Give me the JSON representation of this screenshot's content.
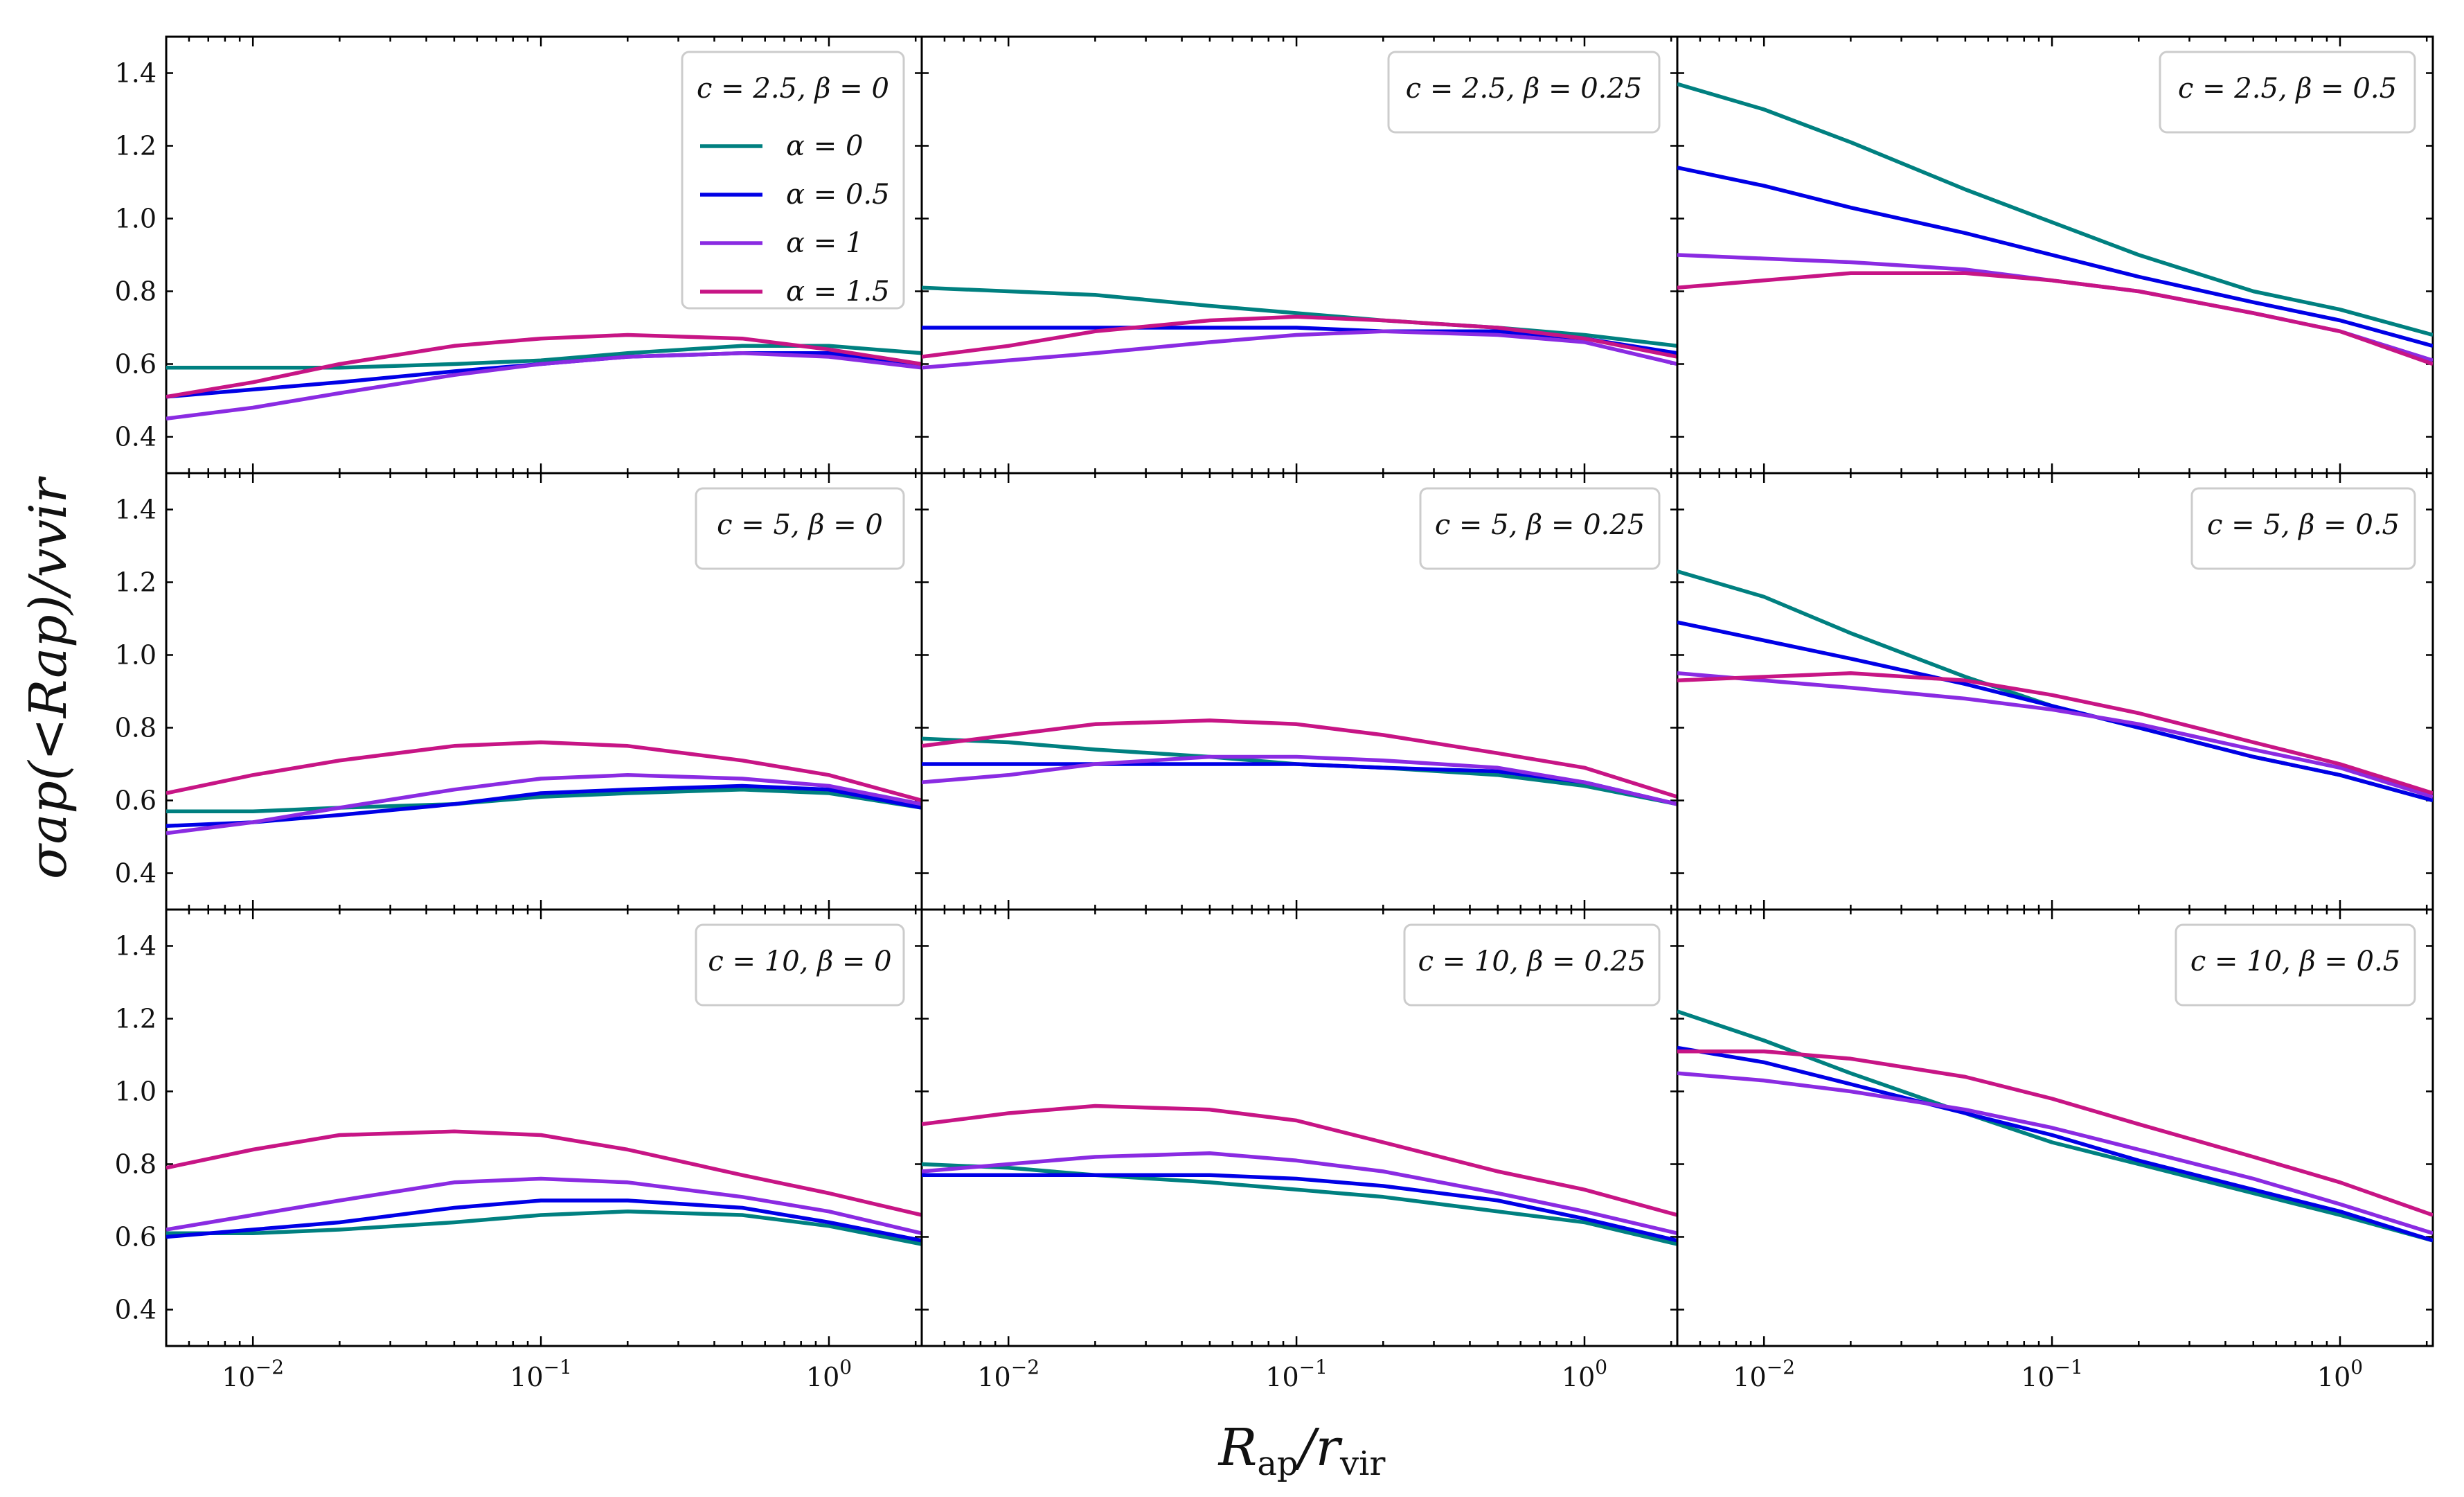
{
  "figure": {
    "xlabel_main": "R",
    "xlabel_sub": "ap",
    "xlabel_sep": "/",
    "xlabel_main2": "r",
    "xlabel_sub2": "vir",
    "ylabel": "σap(<Rap)/vvir"
  },
  "colors": {
    "alpha0": "#008080",
    "alpha05": "#0000e6",
    "alpha1": "#8a2be2",
    "alpha15": "#c71585"
  },
  "chart_data": {
    "type": "line",
    "layout": "3x3 grid, shared axes",
    "xscale": "log",
    "xlim": [
      0.005,
      2.1
    ],
    "ylim": [
      0.3,
      1.5
    ],
    "x_ticks": [
      0.01,
      0.1,
      1
    ],
    "x_tick_labels": [
      [
        "10",
        "−2"
      ],
      [
        "10",
        "−1"
      ],
      [
        "10",
        "0"
      ]
    ],
    "y_ticks": [
      0.4,
      0.6,
      0.8,
      1.0,
      1.2,
      1.4
    ],
    "y_tick_labels": [
      "0.4",
      "0.6",
      "0.8",
      "1.0",
      "1.2",
      "1.4"
    ],
    "x": [
      0.005,
      0.01,
      0.02,
      0.05,
      0.1,
      0.2,
      0.5,
      1.0,
      2.1
    ],
    "legend": {
      "panel": 0,
      "entries": [
        "α = 0",
        "α = 0.5",
        "α = 1",
        "α = 1.5"
      ]
    },
    "panels": [
      {
        "title": "c = 2.5, β = 0",
        "series": [
          {
            "name": "α = 0",
            "values": [
              0.59,
              0.59,
              0.59,
              0.6,
              0.61,
              0.63,
              0.65,
              0.65,
              0.63
            ]
          },
          {
            "name": "α = 0.5",
            "values": [
              0.51,
              0.53,
              0.55,
              0.58,
              0.6,
              0.62,
              0.63,
              0.63,
              0.6
            ]
          },
          {
            "name": "α = 1",
            "values": [
              0.45,
              0.48,
              0.52,
              0.57,
              0.6,
              0.62,
              0.63,
              0.62,
              0.59
            ]
          },
          {
            "name": "α = 1.5",
            "values": [
              0.51,
              0.55,
              0.6,
              0.65,
              0.67,
              0.68,
              0.67,
              0.64,
              0.6
            ]
          }
        ]
      },
      {
        "title": "c = 2.5, β = 0.25",
        "series": [
          {
            "name": "α = 0",
            "values": [
              0.81,
              0.8,
              0.79,
              0.76,
              0.74,
              0.72,
              0.7,
              0.68,
              0.65
            ]
          },
          {
            "name": "α = 0.5",
            "values": [
              0.7,
              0.7,
              0.7,
              0.7,
              0.7,
              0.69,
              0.69,
              0.67,
              0.63
            ]
          },
          {
            "name": "α = 1",
            "values": [
              0.59,
              0.61,
              0.63,
              0.66,
              0.68,
              0.69,
              0.68,
              0.66,
              0.6
            ]
          },
          {
            "name": "α = 1.5",
            "values": [
              0.62,
              0.65,
              0.69,
              0.72,
              0.73,
              0.72,
              0.7,
              0.67,
              0.62
            ]
          }
        ]
      },
      {
        "title": "c = 2.5, β = 0.5",
        "series": [
          {
            "name": "α = 0",
            "values": [
              1.37,
              1.3,
              1.21,
              1.08,
              0.99,
              0.9,
              0.8,
              0.75,
              0.68
            ]
          },
          {
            "name": "α = 0.5",
            "values": [
              1.14,
              1.09,
              1.03,
              0.96,
              0.9,
              0.84,
              0.77,
              0.72,
              0.65
            ]
          },
          {
            "name": "α = 1",
            "values": [
              0.9,
              0.89,
              0.88,
              0.86,
              0.83,
              0.8,
              0.74,
              0.69,
              0.61
            ]
          },
          {
            "name": "α = 1.5",
            "values": [
              0.81,
              0.83,
              0.85,
              0.85,
              0.83,
              0.8,
              0.74,
              0.69,
              0.6
            ]
          }
        ]
      },
      {
        "title": "c = 5, β = 0",
        "series": [
          {
            "name": "α = 0",
            "values": [
              0.57,
              0.57,
              0.58,
              0.59,
              0.61,
              0.62,
              0.63,
              0.62,
              0.58
            ]
          },
          {
            "name": "α = 0.5",
            "values": [
              0.53,
              0.54,
              0.56,
              0.59,
              0.62,
              0.63,
              0.64,
              0.63,
              0.58
            ]
          },
          {
            "name": "α = 1",
            "values": [
              0.51,
              0.54,
              0.58,
              0.63,
              0.66,
              0.67,
              0.66,
              0.64,
              0.59
            ]
          },
          {
            "name": "α = 1.5",
            "values": [
              0.62,
              0.67,
              0.71,
              0.75,
              0.76,
              0.75,
              0.71,
              0.67,
              0.6
            ]
          }
        ]
      },
      {
        "title": "c = 5, β = 0.25",
        "series": [
          {
            "name": "α = 0",
            "values": [
              0.77,
              0.76,
              0.74,
              0.72,
              0.7,
              0.69,
              0.67,
              0.64,
              0.59
            ]
          },
          {
            "name": "α = 0.5",
            "values": [
              0.7,
              0.7,
              0.7,
              0.7,
              0.7,
              0.69,
              0.68,
              0.65,
              0.59
            ]
          },
          {
            "name": "α = 1",
            "values": [
              0.65,
              0.67,
              0.7,
              0.72,
              0.72,
              0.71,
              0.69,
              0.65,
              0.59
            ]
          },
          {
            "name": "α = 1.5",
            "values": [
              0.75,
              0.78,
              0.81,
              0.82,
              0.81,
              0.78,
              0.73,
              0.69,
              0.61
            ]
          }
        ]
      },
      {
        "title": "c = 5, β = 0.5",
        "series": [
          {
            "name": "α = 0",
            "values": [
              1.23,
              1.16,
              1.06,
              0.94,
              0.86,
              0.8,
              0.72,
              0.67,
              0.6
            ]
          },
          {
            "name": "α = 0.5",
            "values": [
              1.09,
              1.04,
              0.99,
              0.92,
              0.86,
              0.8,
              0.72,
              0.67,
              0.6
            ]
          },
          {
            "name": "α = 1",
            "values": [
              0.95,
              0.93,
              0.91,
              0.88,
              0.85,
              0.81,
              0.74,
              0.69,
              0.61
            ]
          },
          {
            "name": "α = 1.5",
            "values": [
              0.93,
              0.94,
              0.95,
              0.93,
              0.89,
              0.84,
              0.76,
              0.7,
              0.62
            ]
          }
        ]
      },
      {
        "title": "c = 10, β = 0",
        "series": [
          {
            "name": "α = 0",
            "values": [
              0.61,
              0.61,
              0.62,
              0.64,
              0.66,
              0.67,
              0.66,
              0.63,
              0.58
            ]
          },
          {
            "name": "α = 0.5",
            "values": [
              0.6,
              0.62,
              0.64,
              0.68,
              0.7,
              0.7,
              0.68,
              0.64,
              0.59
            ]
          },
          {
            "name": "α = 1",
            "values": [
              0.62,
              0.66,
              0.7,
              0.75,
              0.76,
              0.75,
              0.71,
              0.67,
              0.61
            ]
          },
          {
            "name": "α = 1.5",
            "values": [
              0.79,
              0.84,
              0.88,
              0.89,
              0.88,
              0.84,
              0.77,
              0.72,
              0.66
            ]
          }
        ]
      },
      {
        "title": "c = 10, β = 0.25",
        "series": [
          {
            "name": "α = 0",
            "values": [
              0.8,
              0.79,
              0.77,
              0.75,
              0.73,
              0.71,
              0.67,
              0.64,
              0.58
            ]
          },
          {
            "name": "α = 0.5",
            "values": [
              0.77,
              0.77,
              0.77,
              0.77,
              0.76,
              0.74,
              0.7,
              0.65,
              0.59
            ]
          },
          {
            "name": "α = 1",
            "values": [
              0.78,
              0.8,
              0.82,
              0.83,
              0.81,
              0.78,
              0.72,
              0.67,
              0.61
            ]
          },
          {
            "name": "α = 1.5",
            "values": [
              0.91,
              0.94,
              0.96,
              0.95,
              0.92,
              0.86,
              0.78,
              0.73,
              0.66
            ]
          }
        ]
      },
      {
        "title": "c = 10, β = 0.5",
        "series": [
          {
            "name": "α = 0",
            "values": [
              1.22,
              1.14,
              1.05,
              0.94,
              0.86,
              0.8,
              0.72,
              0.66,
              0.59
            ]
          },
          {
            "name": "α = 0.5",
            "values": [
              1.12,
              1.08,
              1.02,
              0.94,
              0.88,
              0.81,
              0.73,
              0.67,
              0.59
            ]
          },
          {
            "name": "α = 1",
            "values": [
              1.05,
              1.03,
              1.0,
              0.95,
              0.9,
              0.84,
              0.76,
              0.69,
              0.61
            ]
          },
          {
            "name": "α = 1.5",
            "values": [
              1.11,
              1.11,
              1.09,
              1.04,
              0.98,
              0.91,
              0.82,
              0.75,
              0.66
            ]
          }
        ]
      }
    ]
  }
}
